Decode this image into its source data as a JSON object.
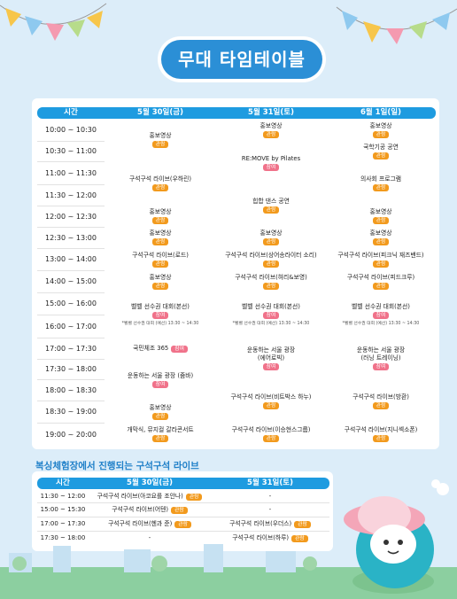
{
  "title": "무대 타임테이블",
  "colors": {
    "header": "#1e9be0",
    "view_badge": "#f29a1d",
    "participate_badge": "#f0728a",
    "title_pill": "#2b8fd6"
  },
  "stage": {
    "headers": [
      "시간",
      "5월 30일(금)",
      "5월 31일(토)",
      "6월 1일(일)"
    ],
    "times": [
      "10:00 ~ 10:30",
      "10:30 ~ 11:00",
      "11:00 ~ 11:30",
      "11:30 ~ 12:00",
      "12:00 ~ 12:30",
      "12:30 ~ 13:00",
      "13:00 ~ 14:00",
      "14:00 ~ 15:00",
      "15:00 ~ 16:00",
      "16:00 ~ 17:00",
      "17:00 ~ 17:30",
      "17:30 ~ 18:00",
      "18:00 ~ 18:30",
      "18:30 ~ 19:00",
      "19:00 ~ 20:00"
    ],
    "d1": [
      {
        "label": "홍보영상",
        "badge": "관람"
      },
      {
        "label": "구석구석 라이브(우하린)",
        "badge": "관람"
      },
      {
        "label": "홍보영상",
        "badge": "관람"
      },
      {
        "label": "홍보영상",
        "badge": "관람"
      },
      {
        "label": "구석구석 라이브(로드)",
        "badge": "관람"
      },
      {
        "label": "홍보영상",
        "badge": "관람"
      },
      {
        "label": "벨벨 선수권 대회(본선)",
        "badge": "참여",
        "note": "*벨벨 선수권 대회 (예선) 13:30 ~ 14:30"
      },
      {
        "label": "국민체조 365",
        "badge": "참여"
      },
      {
        "label": "운동하는 서울 광장 (줌바)",
        "badge": "참여"
      },
      {
        "label": "홍보영상",
        "badge": "관람"
      },
      {
        "label": "개막식, 뮤지컬 갈라콘서트",
        "badge": "관람"
      }
    ],
    "d2": [
      {
        "label": "홍보영상",
        "badge": "관람"
      },
      {
        "label": "RE:MOVE by Pilates",
        "badge": "참여"
      },
      {
        "label": "힙합 댄스 공연",
        "badge": "관람"
      },
      {
        "label": "홍보영상",
        "badge": "관람"
      },
      {
        "label": "구석구석 라이브(상어송라이터 소리)",
        "badge": "관람"
      },
      {
        "label": "구석구석 라이브(혀리&보영)",
        "badge": "관람"
      },
      {
        "label": "벨벨 선수권 대회(본선)",
        "badge": "참여",
        "note": "*벨벨 선수권 대회 (예선) 13:30 ~ 14:30"
      },
      {
        "label": "운동하는 서울 광장",
        "sub": "(에어로빅)",
        "badge": "참여"
      },
      {
        "label": "구석구석 라이브(비트박스 하누)",
        "badge": "관람"
      },
      {
        "label": "구석구석 라이브(이승현스그룹)",
        "badge": "관람"
      }
    ],
    "d3": [
      {
        "label": "홍보영상",
        "badge": "관람"
      },
      {
        "label": "국학기공 공연",
        "badge": "관람"
      },
      {
        "label": "의사회 프로그램",
        "badge": "관람"
      },
      {
        "label": "홍보영상",
        "badge": "관람"
      },
      {
        "label": "홍보영상",
        "badge": "관람"
      },
      {
        "label": "구석구석 라이브(피크닉 재즈밴드)",
        "badge": "관람"
      },
      {
        "label": "구석구석 라이브(피드크루)",
        "badge": "관람"
      },
      {
        "label": "벨벨 선수권 대회(본선)",
        "badge": "참여",
        "note": "*벨벨 선수권 대회 (예선) 13:30 ~ 14:30"
      },
      {
        "label": "운동하는 서울 광장",
        "sub": "(러닝 트레이닝)",
        "badge": "참여"
      },
      {
        "label": "구석구석 라이브(방환)",
        "badge": "관람"
      },
      {
        "label": "구석구석 라이브(지니섹소폰)",
        "badge": "관람"
      }
    ]
  },
  "live": {
    "title": "복싱체험장에서 진행되는 구석구석 라이브",
    "headers": [
      "시간",
      "5월 30일(금)",
      "5월 31일(토)"
    ],
    "rows": [
      {
        "time": "11:30 ~ 12:00",
        "d1": "구석구석 라이브(아코요를 조안나)",
        "d1_badge": "관람",
        "d2": "-",
        "d2_badge": ""
      },
      {
        "time": "15:00 ~ 15:30",
        "d1": "구석구석 라이브(어텐)",
        "d1_badge": "관람",
        "d2": "-",
        "d2_badge": ""
      },
      {
        "time": "17:00 ~ 17:30",
        "d1": "구석구석 라이브(헨과 준)",
        "d1_badge": "관람",
        "d2": "구석구석 라이브(우더스)",
        "d2_badge": "관람"
      },
      {
        "time": "17:30 ~ 18:00",
        "d1": "-",
        "d1_badge": "",
        "d2": "구석구석 라이브(하루)",
        "d2_badge": "관람"
      }
    ]
  }
}
